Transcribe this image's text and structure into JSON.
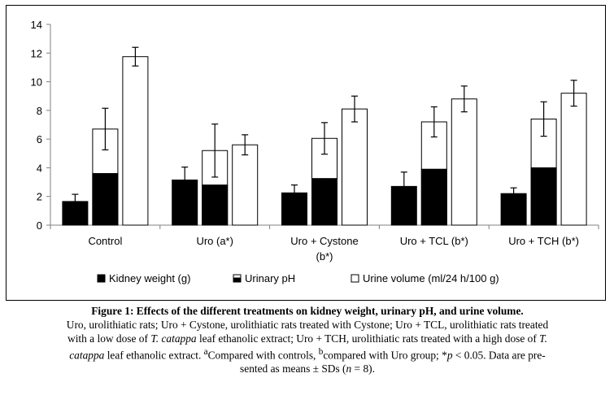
{
  "chart_data": {
    "type": "bar",
    "title": "",
    "xlabel": "",
    "ylabel": "",
    "ylim": [
      0,
      14
    ],
    "yticks": [
      0,
      2,
      4,
      6,
      8,
      10,
      12,
      14
    ],
    "grid": false,
    "legend_position": "bottom",
    "categories": [
      [
        "Control"
      ],
      [
        "Uro (a*)"
      ],
      [
        "Uro + Cystone",
        "(b*)"
      ],
      [
        "Uro + TCL (b*)"
      ],
      [
        "Uro + TCH (b*)"
      ]
    ],
    "series": [
      {
        "name": "Kidney weight (g)",
        "style": "solid-black",
        "values": [
          1.65,
          3.15,
          2.25,
          2.7,
          2.2
        ],
        "errors": [
          0.5,
          0.9,
          0.55,
          1.0,
          0.4
        ]
      },
      {
        "name": "Urinary pH",
        "style": "black-bottom-white-top",
        "values": [
          6.7,
          5.2,
          6.05,
          7.2,
          7.4
        ],
        "inner_values": [
          3.6,
          2.8,
          3.25,
          3.9,
          4.0
        ],
        "errors": [
          1.45,
          1.85,
          1.1,
          1.05,
          1.2
        ]
      },
      {
        "name": "Urine volume (ml/24 h/100 g)",
        "style": "white",
        "values": [
          11.75,
          5.6,
          8.1,
          8.8,
          9.2
        ],
        "errors": [
          0.65,
          0.7,
          0.9,
          0.9,
          0.9
        ]
      }
    ]
  },
  "colors": {
    "bar_dark": "#000000",
    "bar_light": "#ffffff",
    "axis": "#808080"
  },
  "caption": {
    "title": "Figure 1: Effects of the different treatments on kidney weight, urinary pH, and urine volume.",
    "line2": "Uro, urolithiatic rats; Uro + Cystone, urolithiatic rats treated with Cystone; Uro + TCL, urolithiatic rats treated",
    "line3a": "with a low dose of ",
    "line3b": "T. catappa",
    "line3c": " leaf ethanolic extract; Uro + TCH, urolithiatic rats treated with a high dose of ",
    "line3d": "T.",
    "line4a": "catappa",
    "line4b": " leaf ethanolic extract. ",
    "sup_a": "a",
    "line4c": "Compared with controls, ",
    "sup_b": "b",
    "line4d": "compared with Uro group; *",
    "line4e": "p",
    "line4f": " < 0.05. Data are pre-",
    "line5a": "sented as means ± SDs (",
    "line5b": "n",
    "line5c": " = 8)."
  }
}
